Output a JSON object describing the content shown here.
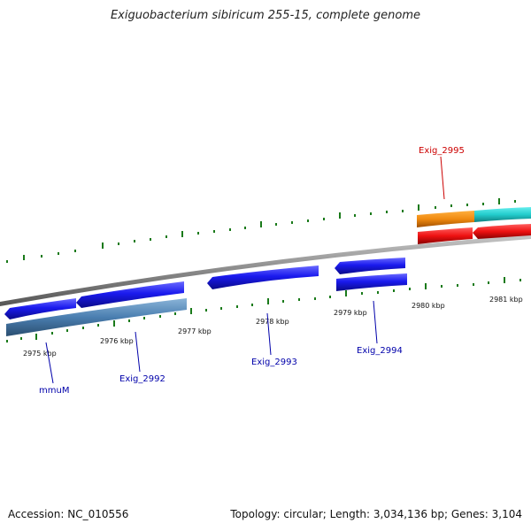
{
  "title": "Exiguobacterium sibiricum 255-15, complete genome",
  "footer": {
    "accession": "Accession: NC_010556",
    "summary": "Topology: circular; Length: 3,034,136 bp; Genes: 3,104"
  },
  "ticks": [
    {
      "label": "2975 kbp"
    },
    {
      "label": "2976 kbp"
    },
    {
      "label": "2977 kbp"
    },
    {
      "label": "2978 kbp"
    },
    {
      "label": "2979 kbp"
    },
    {
      "label": "2980 kbp"
    },
    {
      "label": "2981 kbp"
    }
  ],
  "gene_labels": [
    {
      "text": "mmuM",
      "color": "#0000aa"
    },
    {
      "text": "Exig_2992",
      "color": "#0000aa"
    },
    {
      "text": "Exig_2993",
      "color": "#0000aa"
    },
    {
      "text": "Exig_2994",
      "color": "#0000aa"
    },
    {
      "text": "Exig_2995",
      "color": "#cc0000"
    }
  ],
  "colors": {
    "forward_cds": "#1a1aee",
    "reverse_cds": "#1a1aee",
    "rna": "#4a7eb0",
    "orange_feature": "#f08a10",
    "cyan_feature": "#22cccc",
    "red_feature": "#ee1111",
    "backbone": "#8a8a8a",
    "tick": "#1a7a1a"
  }
}
